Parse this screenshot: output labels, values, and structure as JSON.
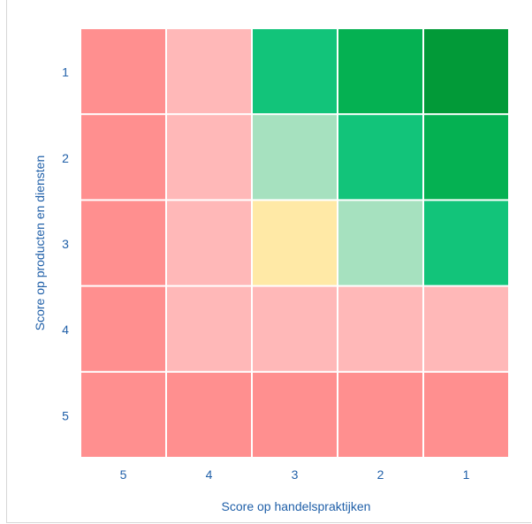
{
  "chart_data": {
    "type": "heatmap",
    "title": "",
    "xlabel": "Score op handelspraktijken",
    "ylabel": "Score op producten en diensten",
    "x_categories": [
      "5",
      "4",
      "3",
      "2",
      "1"
    ],
    "y_categories": [
      "1",
      "2",
      "3",
      "4",
      "5"
    ],
    "cells": [
      [
        "#ff8f8f",
        "#ffb8b8",
        "#12c47a",
        "#05b152",
        "#029a38"
      ],
      [
        "#ff8f8f",
        "#ffb8b8",
        "#a6e1bf",
        "#12c47a",
        "#05b152"
      ],
      [
        "#ff8f8f",
        "#ffb8b8",
        "#ffe9a6",
        "#a6e1bf",
        "#12c47a"
      ],
      [
        "#ff8f8f",
        "#ffb8b8",
        "#ffb8b8",
        "#ffb8b8",
        "#ffb8b8"
      ],
      [
        "#ff8f8f",
        "#ff8f8f",
        "#ff8f8f",
        "#ff8f8f",
        "#ff8f8f"
      ]
    ],
    "grid": false,
    "legend": "none"
  },
  "colors": {
    "tick_text": "#1f5fa8",
    "axis_text": "#1f5fa8",
    "cell_gap": "#ffffff"
  }
}
